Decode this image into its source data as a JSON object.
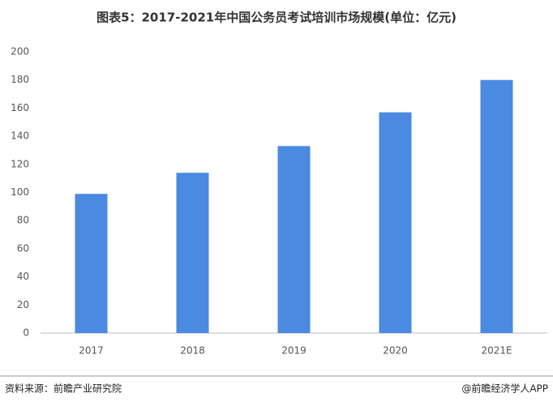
{
  "chart_data": {
    "type": "bar",
    "title": "图表5：2017-2021年中国公务员考试培训市场规模(单位：亿元)",
    "categories": [
      "2017",
      "2018",
      "2019",
      "2020",
      "2021E"
    ],
    "values": [
      99,
      114,
      133,
      157,
      180
    ],
    "color": "#4a8ae0",
    "ylim": [
      0,
      200
    ],
    "yticks": [
      0,
      20,
      40,
      60,
      80,
      100,
      120,
      140,
      160,
      180,
      200
    ],
    "grid": false,
    "source": "资料来源：前瞻产业研究院",
    "brand": "@前瞻经济学人APP"
  }
}
